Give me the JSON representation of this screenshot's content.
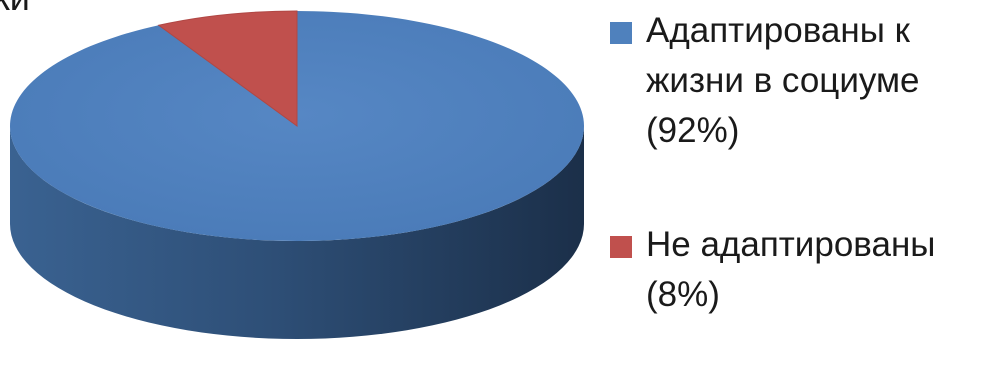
{
  "chart_data": {
    "type": "pie",
    "title": "ки",
    "categories": [
      "Адаптированы к жизни в социуме (92%)",
      "Не адаптированы (8%)"
    ],
    "values": [
      92,
      8
    ],
    "colors": [
      "#4f81bd",
      "#c0504d"
    ],
    "legend_position": "right",
    "three_d": true
  },
  "legend": {
    "items": [
      {
        "label": "Адаптированы к жизни в социуме (92%)",
        "color": "#4f81bd"
      },
      {
        "label": "Не адаптированы (8%)",
        "color": "#c0504d"
      }
    ]
  }
}
